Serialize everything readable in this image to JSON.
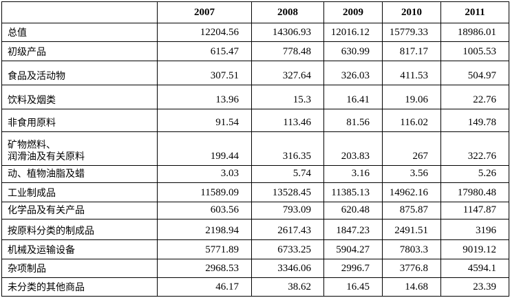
{
  "table": {
    "header": [
      "2007",
      "2008",
      "2009",
      "2010",
      "2011"
    ],
    "rows": [
      {
        "label": [
          "总值"
        ],
        "values": [
          12204.56,
          14306.93,
          12016.12,
          15779.33,
          18986.01
        ]
      },
      {
        "label": [
          "初级产品"
        ],
        "values": [
          615.47,
          778.48,
          630.99,
          817.17,
          1005.53
        ]
      },
      {
        "label": [
          "食品及活动物"
        ],
        "values": [
          307.51,
          327.64,
          326.03,
          411.53,
          504.97
        ]
      },
      {
        "label": [
          "饮料及烟类"
        ],
        "values": [
          13.96,
          15.3,
          16.41,
          19.06,
          22.76
        ]
      },
      {
        "label": [
          "非食用原料"
        ],
        "values": [
          91.54,
          113.46,
          81.56,
          116.02,
          149.78
        ]
      },
      {
        "label": [
          "矿物燃料、",
          "润滑油及有关原料"
        ],
        "values": [
          199.44,
          316.35,
          203.83,
          267,
          322.76
        ]
      },
      {
        "label": [
          "动、植物油脂及蜡"
        ],
        "values": [
          3.03,
          5.74,
          3.16,
          3.56,
          5.26
        ]
      },
      {
        "label": [
          "工业制成品"
        ],
        "values": [
          11589.09,
          13528.45,
          11385.13,
          14962.16,
          17980.48
        ]
      },
      {
        "label": [
          "化学品及有关产品"
        ],
        "values": [
          603.56,
          793.09,
          620.48,
          875.87,
          1147.87
        ]
      },
      {
        "label": [
          "按原料分类的制成品"
        ],
        "values": [
          2198.94,
          2617.43,
          1847.23,
          2491.51,
          3196
        ]
      },
      {
        "label": [
          "机械及运输设备"
        ],
        "values": [
          5771.89,
          6733.25,
          5904.27,
          7803.3,
          9019.12
        ]
      },
      {
        "label": [
          "杂项制品"
        ],
        "values": [
          2968.53,
          3346.06,
          2996.7,
          3776.8,
          4594.1
        ]
      },
      {
        "label": [
          "未分类的其他商品"
        ],
        "values": [
          46.17,
          38.62,
          16.45,
          14.68,
          23.39
        ]
      }
    ]
  }
}
